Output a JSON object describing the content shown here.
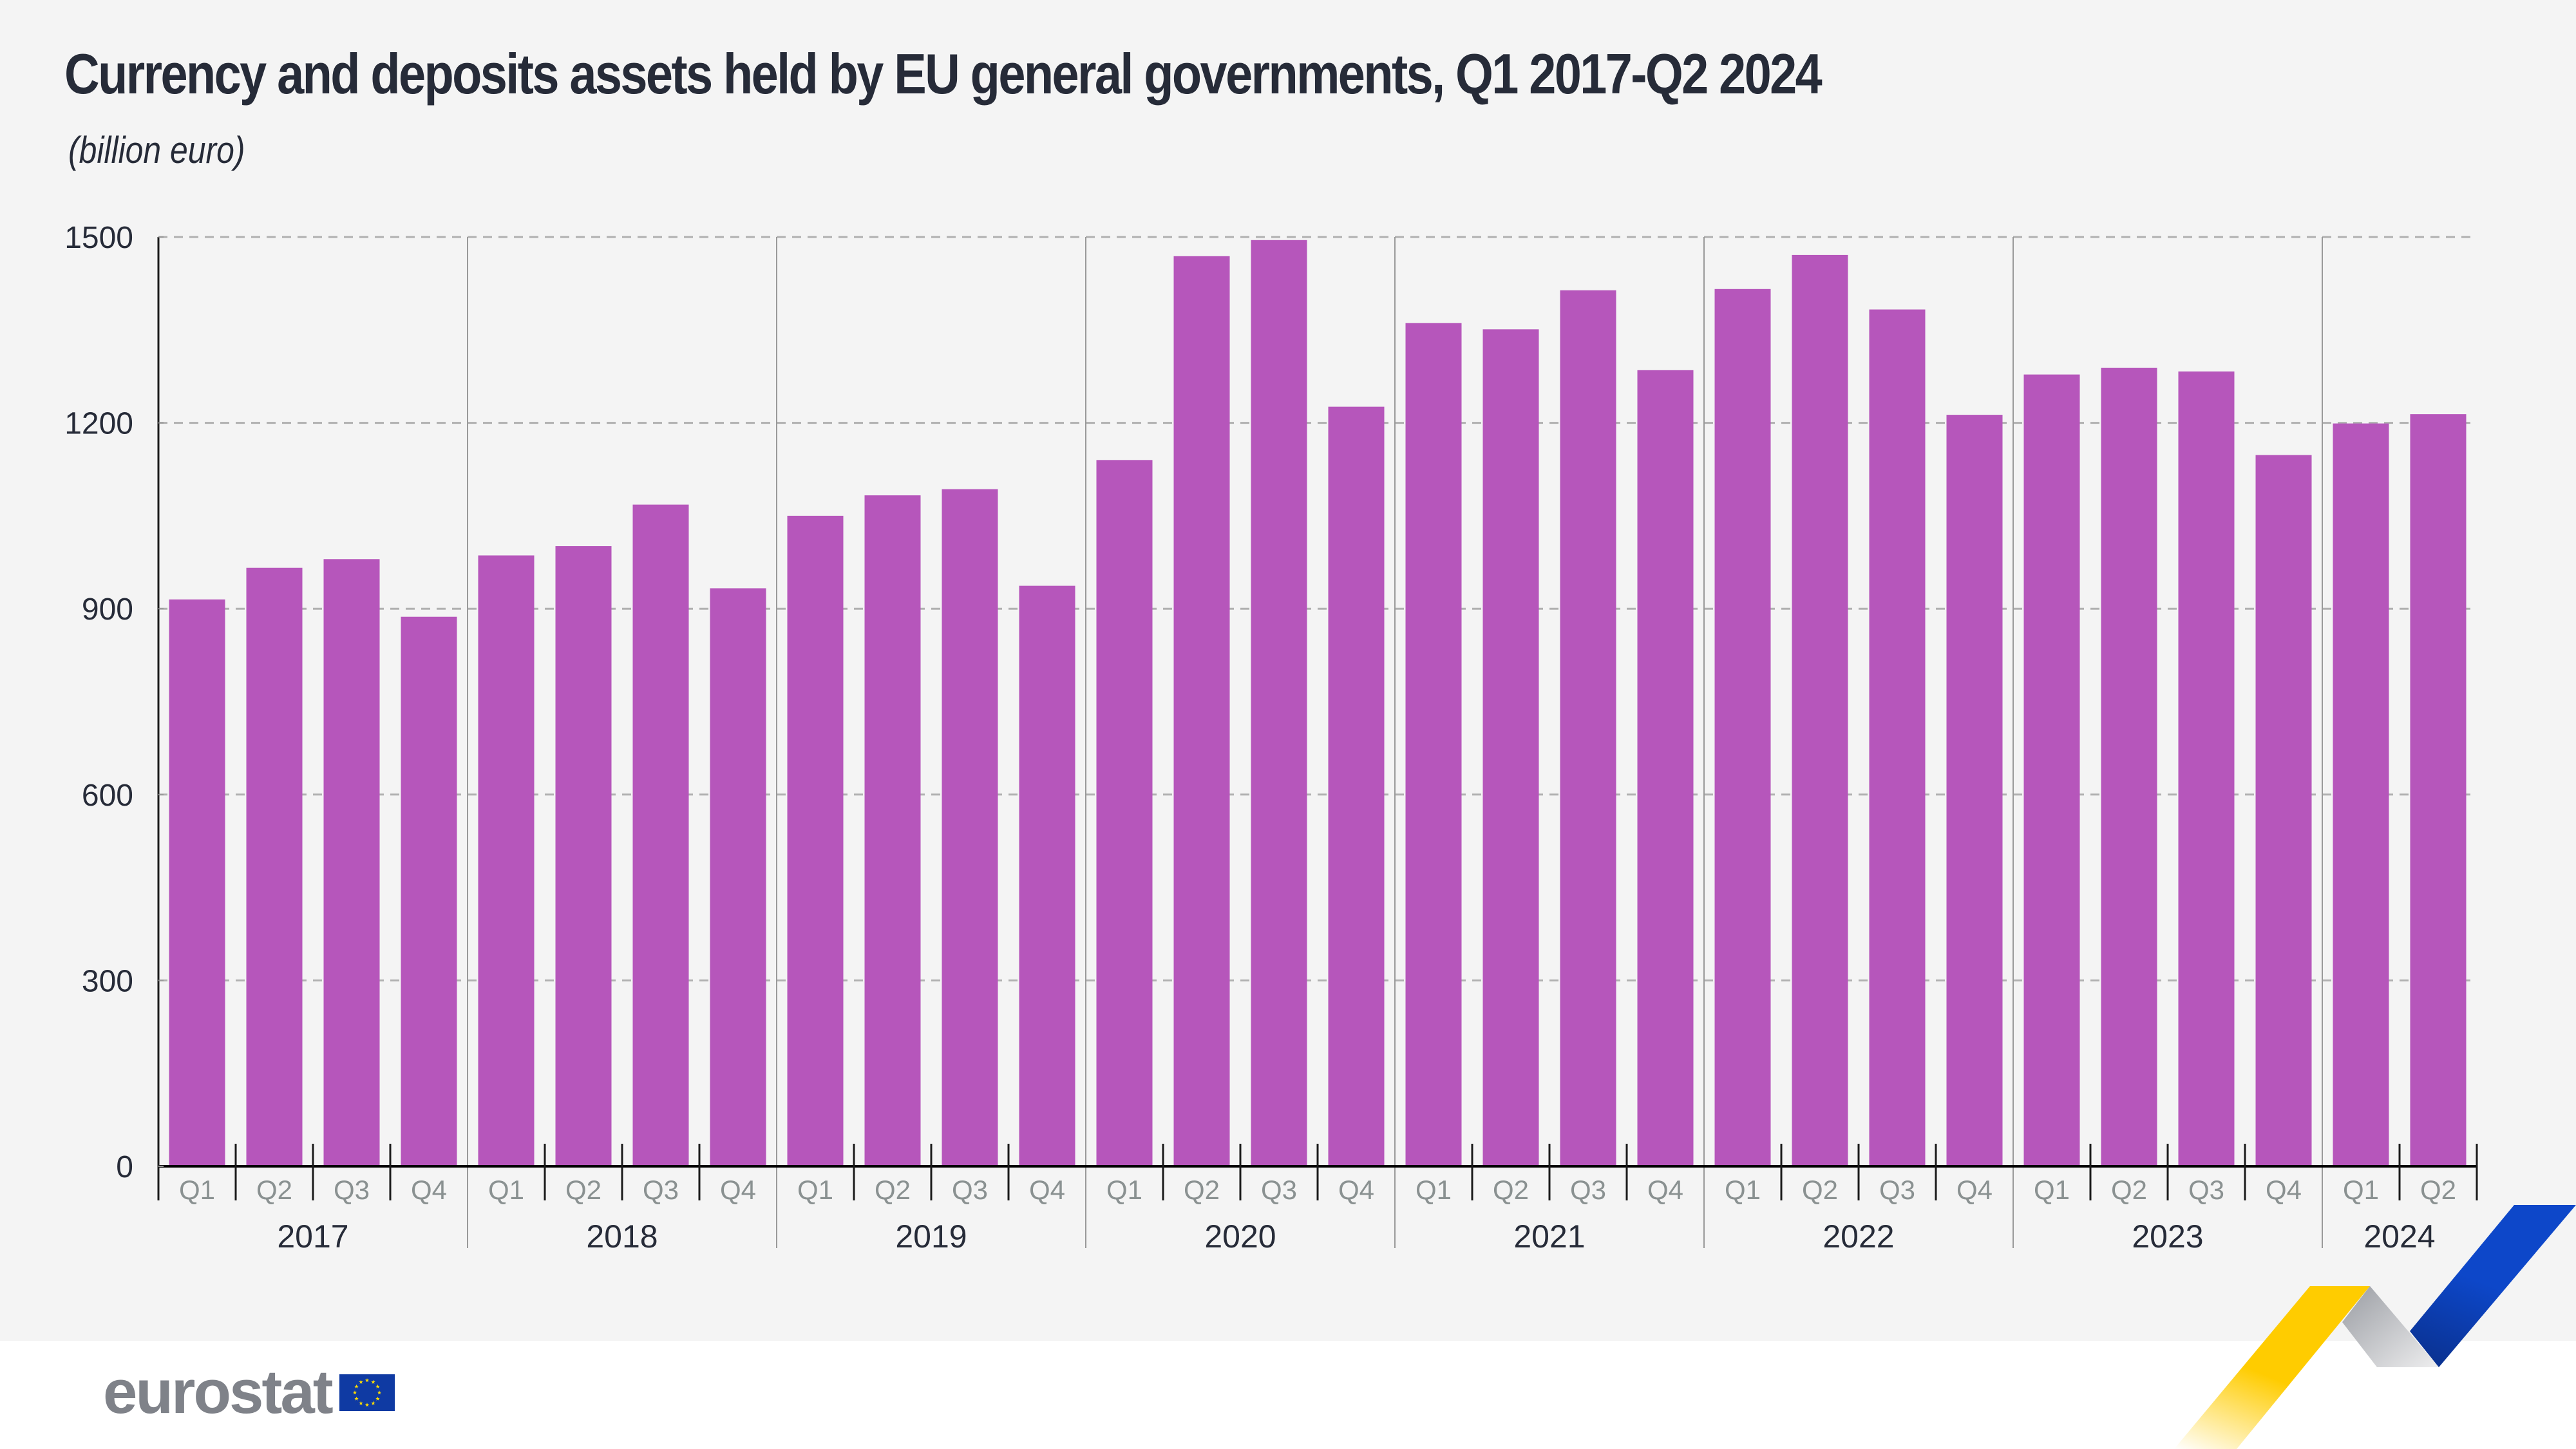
{
  "header": {
    "title": "Currency and deposits assets held by EU general governments, Q1 2017-Q2 2024",
    "subtitle": "(billion euro)"
  },
  "logo": {
    "text": "eurostat",
    "flag_icon": "eu-flag-icon"
  },
  "colors": {
    "bar": "#b656bb",
    "background": "#f4f4f4",
    "text": "#262b38",
    "quarter_label": "#8a9191",
    "gridline": "#b0b0b0",
    "ribbon_yellow": "#ffcc00",
    "ribbon_grey": "#a5a8ad",
    "ribbon_blue": "#0d47c9"
  },
  "chart_data": {
    "type": "bar",
    "title": "Currency and deposits assets held by EU general governments, Q1 2017-Q2 2024",
    "subtitle": "(billion euro)",
    "xlabel": "",
    "ylabel": "billion euro",
    "ylim": [
      0,
      1500
    ],
    "yticks": [
      0,
      300,
      600,
      900,
      1200,
      1500
    ],
    "grid": true,
    "legend": "none",
    "years": [
      "2017",
      "2018",
      "2019",
      "2020",
      "2021",
      "2022",
      "2023",
      "2024"
    ],
    "categories": [
      "Q1 2017",
      "Q2 2017",
      "Q3 2017",
      "Q4 2017",
      "Q1 2018",
      "Q2 2018",
      "Q3 2018",
      "Q4 2018",
      "Q1 2019",
      "Q2 2019",
      "Q3 2019",
      "Q4 2019",
      "Q1 2020",
      "Q2 2020",
      "Q3 2020",
      "Q4 2020",
      "Q1 2021",
      "Q2 2021",
      "Q3 2021",
      "Q4 2021",
      "Q1 2022",
      "Q2 2022",
      "Q3 2022",
      "Q4 2022",
      "Q1 2023",
      "Q2 2023",
      "Q3 2023",
      "Q4 2023",
      "Q1 2024",
      "Q2 2024"
    ],
    "quarter_labels": [
      "Q1",
      "Q2",
      "Q3",
      "Q4",
      "Q1",
      "Q2",
      "Q3",
      "Q4",
      "Q1",
      "Q2",
      "Q3",
      "Q4",
      "Q1",
      "Q2",
      "Q3",
      "Q4",
      "Q1",
      "Q2",
      "Q3",
      "Q4",
      "Q1",
      "Q2",
      "Q3",
      "Q4",
      "Q1",
      "Q2",
      "Q3",
      "Q4",
      "Q1",
      "Q2"
    ],
    "values": [
      915,
      966,
      980,
      887,
      986,
      1001,
      1068,
      933,
      1050,
      1083,
      1093,
      937,
      1140,
      1469,
      1495,
      1226,
      1361,
      1351,
      1414,
      1285,
      1416,
      1471,
      1383,
      1213,
      1278,
      1289,
      1283,
      1148,
      1199,
      1214
    ]
  }
}
